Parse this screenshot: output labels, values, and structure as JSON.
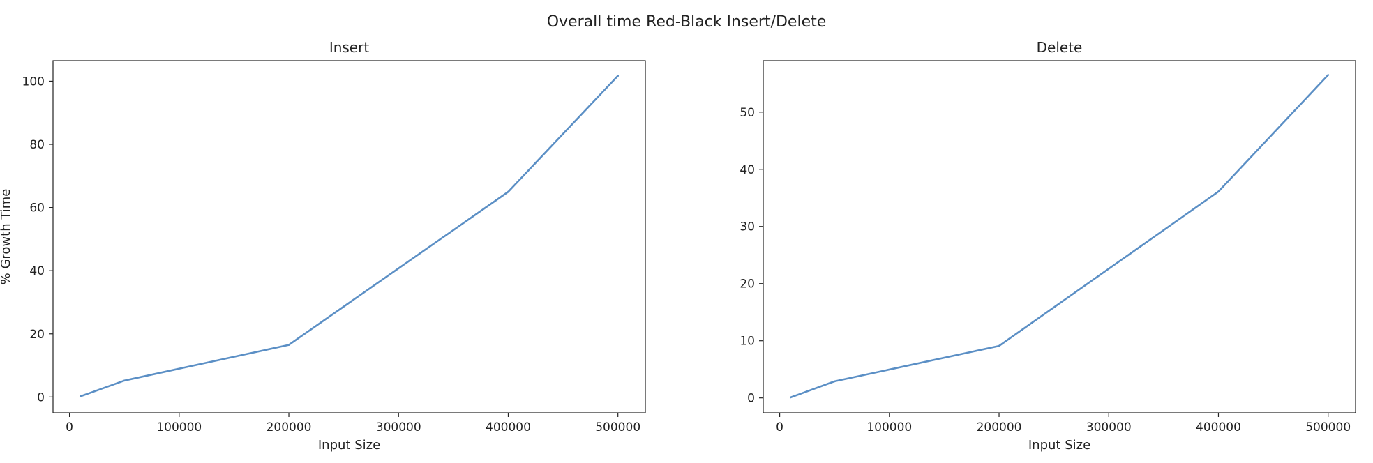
{
  "figure": {
    "suptitle": "Overall time Red-Black Insert/Delete"
  },
  "chart_data": [
    {
      "type": "line",
      "title": "Insert",
      "xlabel": "Input Size",
      "ylabel": "% Growth Time",
      "x": [
        10000,
        50000,
        200000,
        400000,
        500000
      ],
      "series": [
        {
          "values": [
            0.2,
            5.2,
            16.5,
            65.0,
            101.7
          ]
        }
      ],
      "xlim": [
        -15000,
        525000
      ],
      "ylim": [
        -5,
        106.5
      ],
      "xticks": [
        0,
        100000,
        200000,
        300000,
        400000,
        500000
      ],
      "yticks": [
        0,
        20,
        40,
        60,
        80,
        100
      ],
      "grid": false,
      "line_color": "#5b8fc5"
    },
    {
      "type": "line",
      "title": "Delete",
      "xlabel": "Input Size",
      "ylabel": "",
      "x": [
        10000,
        50000,
        200000,
        400000,
        500000
      ],
      "series": [
        {
          "values": [
            0.1,
            2.9,
            9.1,
            36.1,
            56.5
          ]
        }
      ],
      "xlim": [
        -15000,
        525000
      ],
      "ylim": [
        -2.6,
        59.0
      ],
      "xticks": [
        0,
        100000,
        200000,
        300000,
        400000,
        500000
      ],
      "yticks": [
        0,
        10,
        20,
        30,
        40,
        50
      ],
      "grid": false,
      "line_color": "#5b8fc5"
    }
  ]
}
